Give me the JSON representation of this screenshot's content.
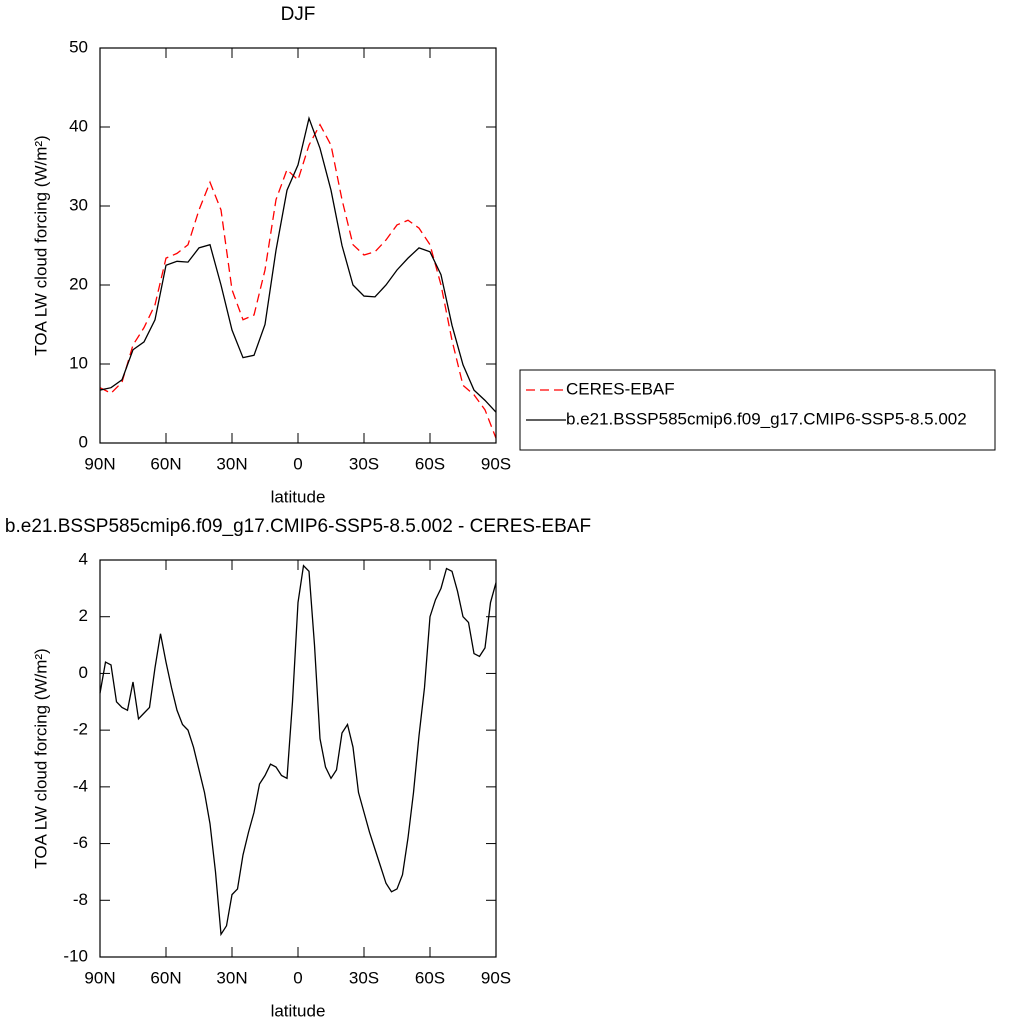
{
  "chart_data": [
    {
      "type": "line",
      "title": "DJF",
      "x_label": "latitude",
      "y_label": "TOA LW cloud forcing (W/m²)",
      "x": [
        90,
        85,
        80,
        75,
        70,
        65,
        60,
        55,
        50,
        45,
        40,
        35,
        30,
        25,
        20,
        15,
        10,
        5,
        0,
        -5,
        -10,
        -15,
        -20,
        -25,
        -30,
        -35,
        -40,
        -45,
        -50,
        -55,
        -60,
        -65,
        -70,
        -75,
        -80,
        -85,
        -90
      ],
      "series": [
        {
          "name": "CERES-EBAF",
          "color": "#ff0000",
          "linestyle": "dashed",
          "values": [
            7.0,
            6.3,
            7.7,
            12.4,
            14.6,
            17.5,
            23.4,
            24.0,
            25.1,
            29.5,
            33.0,
            29.5,
            19.4,
            15.6,
            16.2,
            21.9,
            30.8,
            34.6,
            33.3,
            37.7,
            40.3,
            37.7,
            30.8,
            25.1,
            23.8,
            24.2,
            25.7,
            27.6,
            28.2,
            27.2,
            25.1,
            20.0,
            13.0,
            7.3,
            6.1,
            4.2,
            0.6
          ]
        },
        {
          "name": "b.e21.BSSP585cmip6.f09_g17.CMIP6-SSP5-8.5.002",
          "color": "#000000",
          "linestyle": "solid",
          "values": [
            6.7,
            7.0,
            8.0,
            11.8,
            12.8,
            15.6,
            22.5,
            23.0,
            22.9,
            24.7,
            25.1,
            20.0,
            14.3,
            10.8,
            11.1,
            15.0,
            24.4,
            32.0,
            35.2,
            41.1,
            37.3,
            32.0,
            25.0,
            20.0,
            18.6,
            18.5,
            20.0,
            21.9,
            23.4,
            24.7,
            24.2,
            21.3,
            14.9,
            9.9,
            6.7,
            5.4,
            3.9
          ]
        }
      ],
      "xlim": [
        90,
        -90
      ],
      "xticks": [
        {
          "value": 90,
          "label": "90N"
        },
        {
          "value": 60,
          "label": "60N"
        },
        {
          "value": 30,
          "label": "30N"
        },
        0,
        {
          "value": -30,
          "label": "30S"
        },
        {
          "value": -60,
          "label": "60S"
        },
        {
          "value": -90,
          "label": "90S"
        }
      ],
      "ylim": [
        0,
        50
      ],
      "yticks": [
        0,
        10,
        20,
        30,
        40,
        50
      ],
      "legend": "right"
    },
    {
      "type": "line",
      "title": "b.e21.BSSP585cmip6.f09_g17.CMIP6-SSP5-8.5.002 - CERES-EBAF",
      "x_label": "latitude",
      "y_label": "TOA LW cloud forcing (W/m²)",
      "x": [
        90,
        87.5,
        85,
        82.5,
        80,
        77.5,
        75,
        72.5,
        70,
        67.5,
        65,
        62.5,
        60,
        57.5,
        55,
        52.5,
        50,
        47.5,
        45,
        42.5,
        40,
        37.5,
        35,
        32.5,
        30,
        27.5,
        25,
        22.5,
        20,
        17.5,
        15,
        12.5,
        10,
        7.5,
        5,
        2.5,
        0,
        -2.5,
        -5,
        -7.5,
        -10,
        -12.5,
        -15,
        -17.5,
        -20,
        -22.5,
        -25,
        -27.5,
        -30,
        -32.5,
        -35,
        -37.5,
        -40,
        -42.5,
        -45,
        -47.5,
        -50,
        -52.5,
        -55,
        -57.5,
        -60,
        -62.5,
        -65,
        -67.5,
        -70,
        -72.5,
        -75,
        -77.5,
        -80,
        -82.5,
        -85,
        -87.5,
        -90
      ],
      "series": [
        {
          "color": "#000000",
          "linestyle": "solid",
          "values": [
            -0.7,
            0.4,
            0.3,
            -1.0,
            -1.2,
            -1.3,
            -0.3,
            -1.6,
            -1.4,
            -1.2,
            0.2,
            1.4,
            0.4,
            -0.5,
            -1.3,
            -1.8,
            -2.0,
            -2.6,
            -3.4,
            -4.2,
            -5.3,
            -7.0,
            -9.2,
            -8.9,
            -7.8,
            -7.6,
            -6.4,
            -5.6,
            -4.9,
            -3.9,
            -3.6,
            -3.2,
            -3.3,
            -3.6,
            -3.7,
            -1.0,
            2.5,
            3.8,
            3.6,
            1.0,
            -2.3,
            -3.3,
            -3.7,
            -3.4,
            -2.1,
            -1.8,
            -2.6,
            -4.2,
            -4.9,
            -5.6,
            -6.2,
            -6.8,
            -7.4,
            -7.7,
            -7.6,
            -7.1,
            -5.8,
            -4.2,
            -2.2,
            -0.5,
            2.0,
            2.6,
            3.0,
            3.7,
            3.6,
            2.9,
            2.0,
            1.8,
            0.7,
            0.6,
            0.9,
            2.5,
            3.2
          ]
        }
      ],
      "xlim": [
        90,
        -90
      ],
      "xticks": [
        {
          "value": 90,
          "label": "90N"
        },
        {
          "value": 60,
          "label": "60N"
        },
        {
          "value": 30,
          "label": "30N"
        },
        0,
        {
          "value": -30,
          "label": "30S"
        },
        {
          "value": -60,
          "label": "60S"
        },
        {
          "value": -90,
          "label": "90S"
        }
      ],
      "ylim": [
        -10,
        4
      ],
      "yticks": [
        -10,
        -8,
        -6,
        -4,
        -2,
        0,
        2,
        4
      ]
    }
  ]
}
